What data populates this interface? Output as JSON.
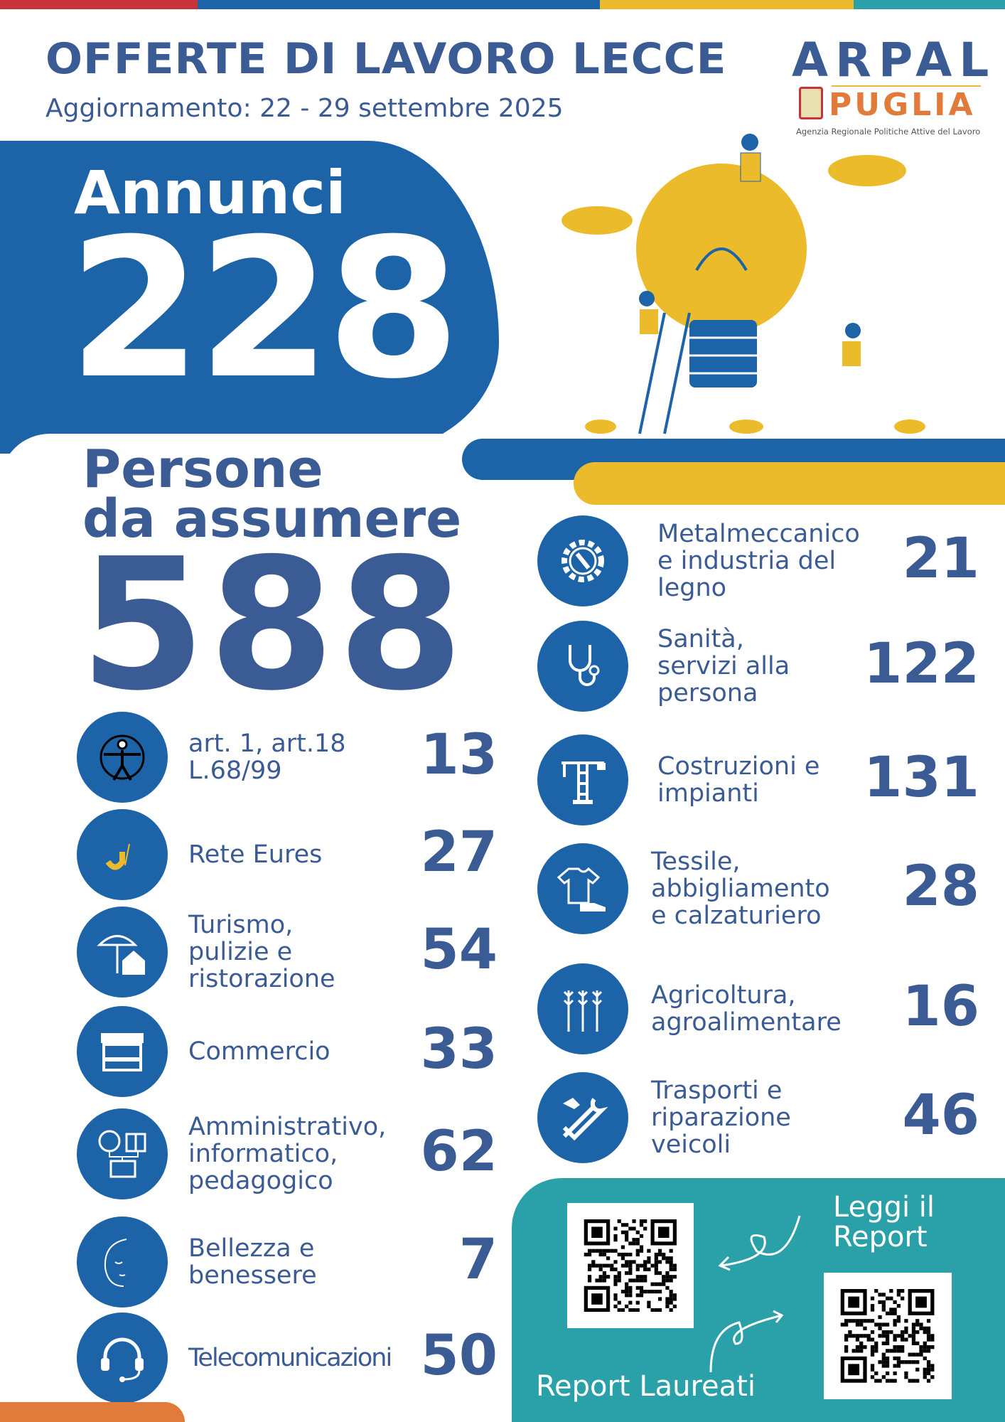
{
  "colors": {
    "blue": "#1d63a7",
    "navy_text": "#3b5b94",
    "yellow": "#ebbb2c",
    "teal": "#2aa0a8",
    "red": "#c8323a",
    "orange": "#e07b3b"
  },
  "header": {
    "title": "OFFERTE DI LAVORO LECCE",
    "subtitle": "Aggiornamento: 22 - 29 settembre 2025"
  },
  "logo": {
    "line1": "ARPAL",
    "line2": "PUGLIA",
    "tagline": "Agenzia Regionale Politiche Attive del Lavoro"
  },
  "annunci": {
    "label": "Annunci",
    "value": "228"
  },
  "persone": {
    "label_line1": "Persone",
    "label_line2": "da assumere",
    "value": "588"
  },
  "left_sectors": [
    {
      "icon": "accessibility-icon",
      "label": "art. 1, art.18\nL.68/99",
      "value": "13"
    },
    {
      "icon": "eures-logo-icon",
      "label": "Rete Eures",
      "value": "27"
    },
    {
      "icon": "umbrella-house-icon",
      "label": "Turismo,\npulizie e\nristorazione",
      "value": "54"
    },
    {
      "icon": "market-stall-icon",
      "label": "Commercio",
      "value": "33"
    },
    {
      "icon": "globe-book-icon",
      "label": "Amministrativo,\ninformatico,\npedagogico",
      "value": "62"
    },
    {
      "icon": "face-icon",
      "label": "Bellezza e\nbenessere",
      "value": "7"
    },
    {
      "icon": "headset-icon",
      "label": "Telecomunicazioni",
      "value": "50"
    }
  ],
  "right_sectors": [
    {
      "icon": "gear-wrench-icon",
      "label": "Metalmeccanico\ne industria del\nlegno",
      "value": "21"
    },
    {
      "icon": "stethoscope-icon",
      "label": "Sanità,\nservizi alla\npersona",
      "value": "122"
    },
    {
      "icon": "crane-icon",
      "label": "Costruzioni e\nimpianti",
      "value": "131"
    },
    {
      "icon": "tshirt-shoe-icon",
      "label": "Tessile,\nabbigliamento\ne calzaturiero",
      "value": "28"
    },
    {
      "icon": "wheat-icon",
      "label": "Agricoltura,\nagroalimentare",
      "value": "16"
    },
    {
      "icon": "tools-icon",
      "label": "Trasporti e\nriparazione\nveicoli",
      "value": "46"
    }
  ],
  "reports": {
    "leggi": "Leggi il\nReport",
    "laureati": "Report Laureati"
  }
}
